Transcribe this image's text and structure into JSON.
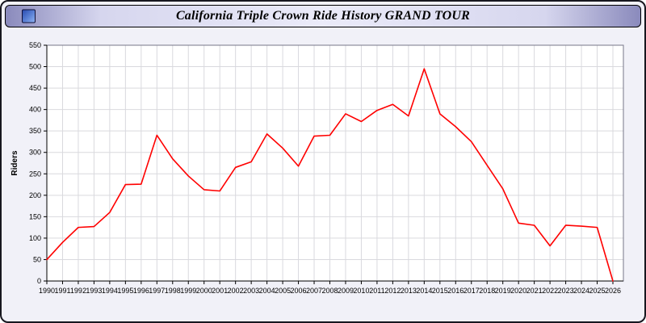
{
  "title_bar": {
    "title": "California Triple Crown Ride History GRAND TOUR"
  },
  "chart_data": {
    "type": "line",
    "title": "California Triple Crown Ride History GRAND TOUR",
    "xlabel": "",
    "ylabel": "Riders",
    "x": [
      1990,
      1991,
      1992,
      1993,
      1994,
      1995,
      1996,
      1997,
      1998,
      1999,
      2000,
      2001,
      2002,
      2003,
      2004,
      2005,
      2006,
      2007,
      2008,
      2009,
      2010,
      2011,
      2012,
      2013,
      2014,
      2015,
      2016,
      2017,
      2018,
      2019,
      2020,
      2021,
      2022,
      2023,
      2024,
      2025,
      2026
    ],
    "series": [
      {
        "name": "Riders",
        "color": "#ff0000",
        "values": [
          50,
          90,
          125,
          127,
          160,
          225,
          226,
          340,
          285,
          245,
          213,
          210,
          265,
          278,
          343,
          310,
          268,
          338,
          340,
          390,
          372,
          398,
          412,
          385,
          495,
          390,
          360,
          325,
          270,
          215,
          135,
          130,
          82,
          130,
          128,
          125,
          0
        ]
      }
    ],
    "ylim": [
      0,
      550
    ],
    "ytick_step": 50,
    "grid": true,
    "legend_position": "none",
    "plot_bg": "#ffffff",
    "grid_color": "#d9d9de",
    "axis_color": "#000000",
    "frame_color": "#777788"
  },
  "colors": {
    "window_bg": "#f1f1f8",
    "line_red": "#ff0000"
  }
}
